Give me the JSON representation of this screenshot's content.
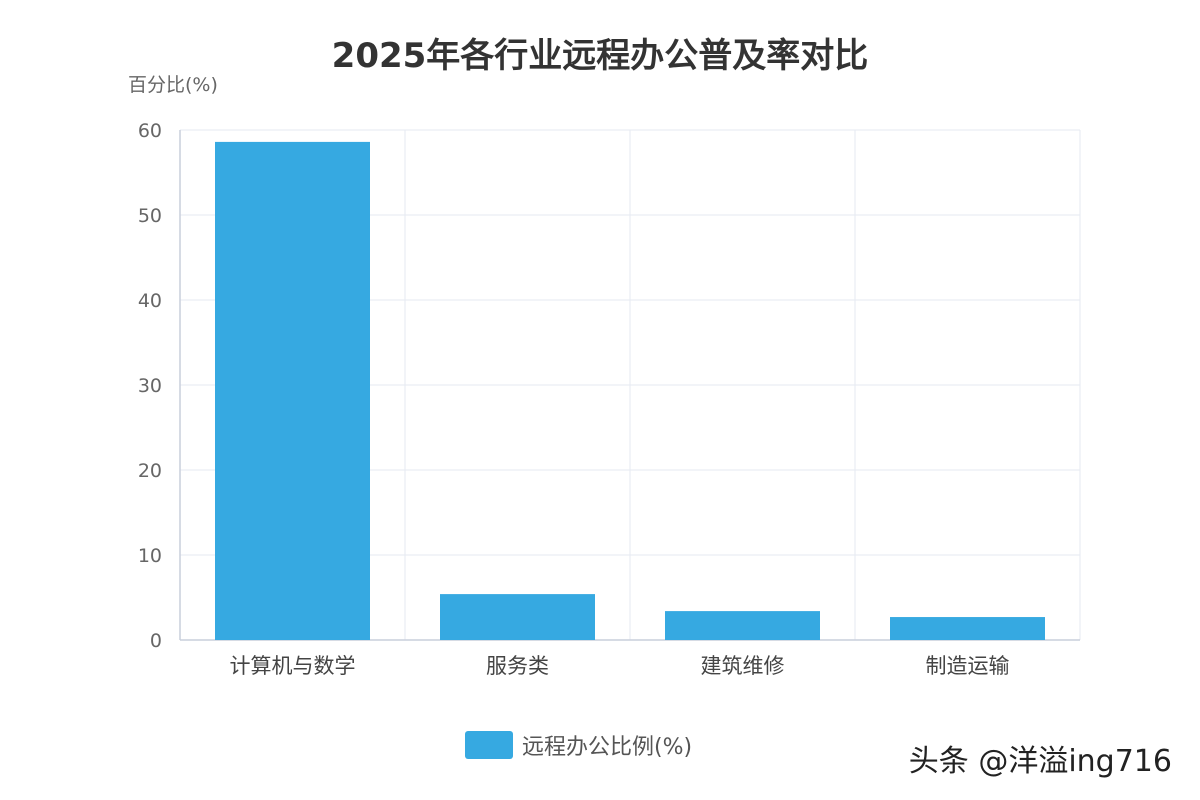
{
  "chart_data": {
    "type": "bar",
    "title": "2025年各行业远程办公普及率对比",
    "ylabel": "百分比(%)",
    "xlabel": "",
    "categories": [
      "计算机与数学",
      "服务类",
      "建筑维修",
      "制造运输"
    ],
    "series": [
      {
        "name": "远程办公比例(%)",
        "values": [
          58.6,
          5.4,
          3.4,
          2.7
        ]
      }
    ],
    "ylim": [
      0,
      60
    ],
    "yticks": [
      0,
      10,
      20,
      30,
      40,
      50,
      60
    ],
    "grid": true,
    "legend": "bottom-center",
    "colors": {
      "bar": "#36a9e1",
      "grid": "#e6eaf2",
      "axis": "#c9cfdc"
    }
  },
  "watermark": {
    "text": "头条 @洋溢ing716"
  }
}
